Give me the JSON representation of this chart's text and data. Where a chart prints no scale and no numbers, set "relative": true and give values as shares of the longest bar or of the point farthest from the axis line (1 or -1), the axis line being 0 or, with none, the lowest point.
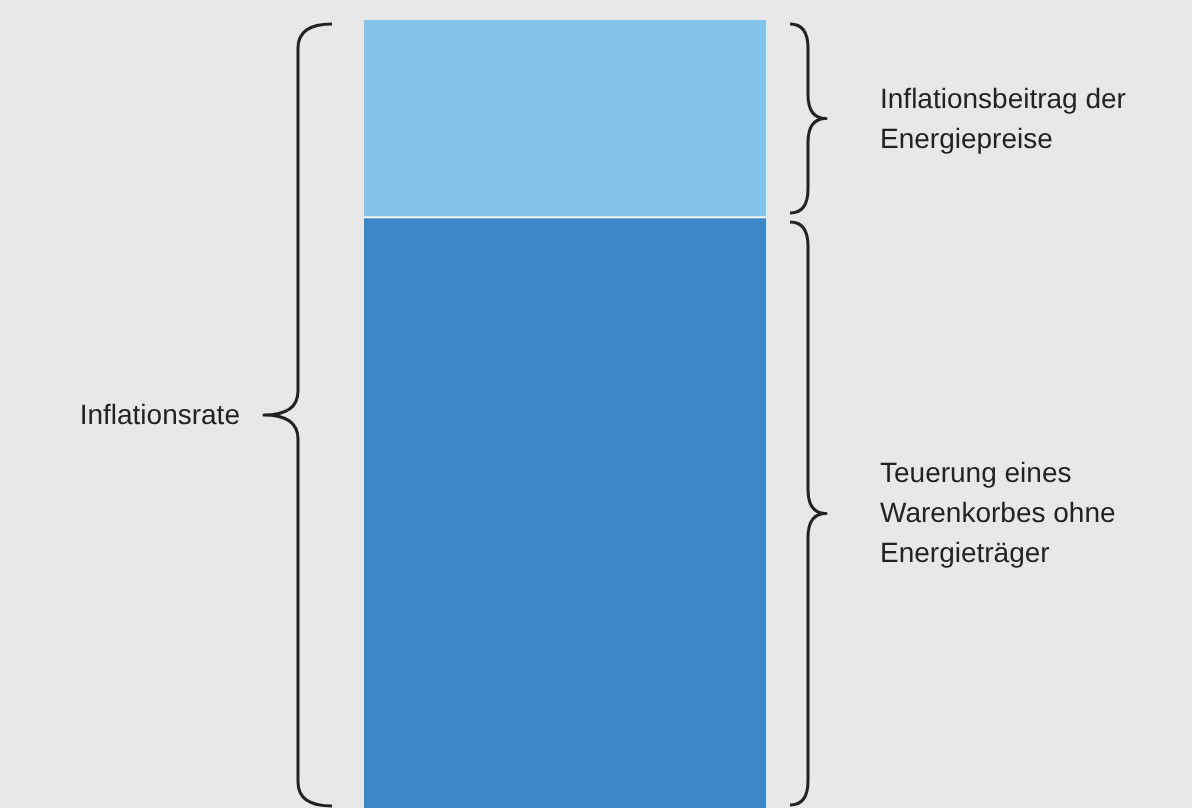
{
  "chart_data": {
    "type": "bar",
    "relative": true,
    "stacked": true,
    "categories": [
      null
    ],
    "series": [
      {
        "name": "Teuerung eines Warenkorbes ohne Energieträger",
        "color": "#3b87c8",
        "values": [
          0.75
        ]
      },
      {
        "name": "Inflationsbeitrag der Energiepreise",
        "color": "#83c3ec",
        "values": [
          0.25
        ]
      }
    ],
    "annotations": [
      "Inflationsrate"
    ]
  }
}
